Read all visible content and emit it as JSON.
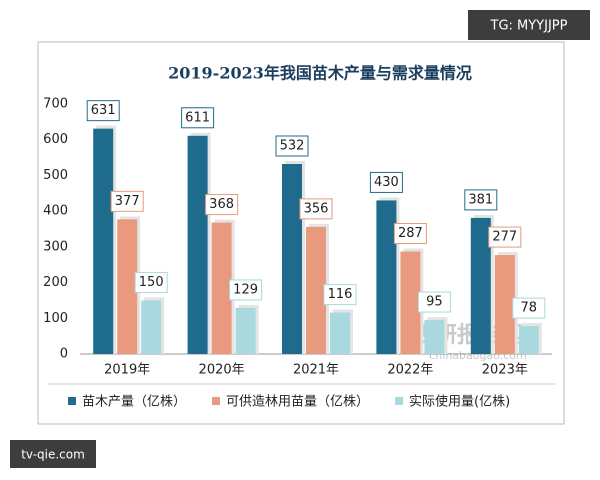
{
  "chart_data": {
    "type": "bar",
    "title": "2019-2023年我国苗木产量与需求量情况",
    "categories": [
      "2019年",
      "2020年",
      "2021年",
      "2022年",
      "2023年"
    ],
    "series": [
      {
        "name": "苗木产量（亿株）",
        "color": "#1f6b8e",
        "values": [
          631,
          611,
          532,
          430,
          381
        ]
      },
      {
        "name": "可供造林用苗量（亿株）",
        "color": "#e99a7e",
        "values": [
          377,
          368,
          356,
          287,
          277
        ]
      },
      {
        "name": "实际使用量(亿株)",
        "color": "#a9d9df",
        "values": [
          150,
          129,
          116,
          95,
          78
        ]
      }
    ],
    "ylim": [
      0,
      700
    ],
    "yticks": [
      0,
      100,
      200,
      300,
      400,
      500,
      600,
      700
    ],
    "grid": false
  },
  "overlay": {
    "badge": "TG: MYYJJPP",
    "site": "tv-qie.com",
    "watermark": "观研报告网",
    "watermark_url": "chinabaogao.com"
  }
}
